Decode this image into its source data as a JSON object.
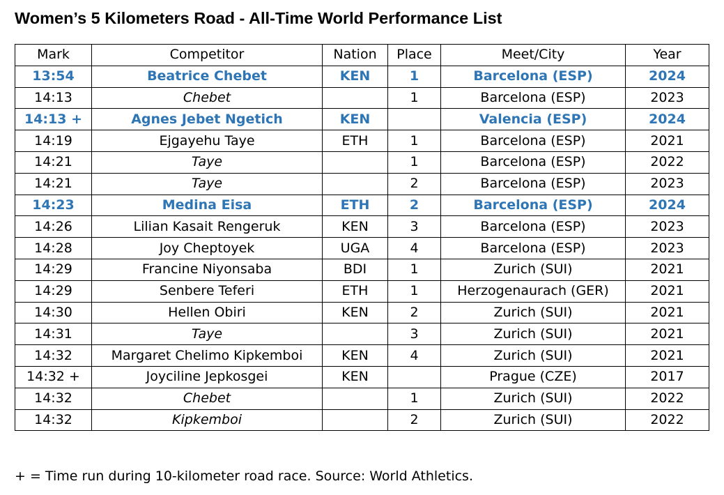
{
  "title": "Women’s 5 Kilometers Road - All-Time World Performance List",
  "colors": {
    "highlight": "#2e75b6",
    "text": "#000000",
    "border": "#000000"
  },
  "table": {
    "headers": [
      "Mark",
      "Competitor",
      "Nation",
      "Place",
      "Meet/City",
      "Year"
    ],
    "rows": [
      {
        "mark": "13:54",
        "competitor": "Beatrice Chebet",
        "nation": "KEN",
        "place": "1",
        "meet": "Barcelona (ESP)",
        "year": "2024",
        "highlight": true,
        "italic_name": false
      },
      {
        "mark": "14:13",
        "competitor": "Chebet",
        "nation": "",
        "place": "1",
        "meet": "Barcelona (ESP)",
        "year": "2023",
        "highlight": false,
        "italic_name": true
      },
      {
        "mark": "14:13 +",
        "competitor": "Agnes Jebet Ngetich",
        "nation": "KEN",
        "place": "",
        "meet": "Valencia (ESP)",
        "year": "2024",
        "highlight": true,
        "italic_name": false
      },
      {
        "mark": "14:19",
        "competitor": "Ejgayehu Taye",
        "nation": "ETH",
        "place": "1",
        "meet": "Barcelona (ESP)",
        "year": "2021",
        "highlight": false,
        "italic_name": false
      },
      {
        "mark": "14:21",
        "competitor": "Taye",
        "nation": "",
        "place": "1",
        "meet": "Barcelona (ESP)",
        "year": "2022",
        "highlight": false,
        "italic_name": true
      },
      {
        "mark": "14:21",
        "competitor": "Taye",
        "nation": "",
        "place": "2",
        "meet": "Barcelona (ESP)",
        "year": "2023",
        "highlight": false,
        "italic_name": true
      },
      {
        "mark": "14:23",
        "competitor": "Medina Eisa",
        "nation": "ETH",
        "place": "2",
        "meet": "Barcelona (ESP)",
        "year": "2024",
        "highlight": true,
        "italic_name": false
      },
      {
        "mark": "14:26",
        "competitor": "Lilian Kasait Rengeruk",
        "nation": "KEN",
        "place": "3",
        "meet": "Barcelona (ESP)",
        "year": "2023",
        "highlight": false,
        "italic_name": false
      },
      {
        "mark": "14:28",
        "competitor": "Joy Cheptoyek",
        "nation": "UGA",
        "place": "4",
        "meet": "Barcelona (ESP)",
        "year": "2023",
        "highlight": false,
        "italic_name": false
      },
      {
        "mark": "14:29",
        "competitor": "Francine Niyonsaba",
        "nation": "BDI",
        "place": "1",
        "meet": "Zurich (SUI)",
        "year": "2021",
        "highlight": false,
        "italic_name": false
      },
      {
        "mark": "14:29",
        "competitor": "Senbere Teferi",
        "nation": "ETH",
        "place": "1",
        "meet": "Herzogenaurach (GER)",
        "year": "2021",
        "highlight": false,
        "italic_name": false
      },
      {
        "mark": "14:30",
        "competitor": "Hellen Obiri",
        "nation": "KEN",
        "place": "2",
        "meet": "Zurich (SUI)",
        "year": "2021",
        "highlight": false,
        "italic_name": false
      },
      {
        "mark": "14:31",
        "competitor": "Taye",
        "nation": "",
        "place": "3",
        "meet": "Zurich (SUI)",
        "year": "2021",
        "highlight": false,
        "italic_name": true
      },
      {
        "mark": "14:32",
        "competitor": "Margaret Chelimo Kipkemboi",
        "nation": "KEN",
        "place": "4",
        "meet": "Zurich (SUI)",
        "year": "2021",
        "highlight": false,
        "italic_name": false
      },
      {
        "mark": "14:32 +",
        "competitor": "Joyciline Jepkosgei",
        "nation": "KEN",
        "place": "",
        "meet": "Prague (CZE)",
        "year": "2017",
        "highlight": false,
        "italic_name": false
      },
      {
        "mark": "14:32",
        "competitor": "Chebet",
        "nation": "",
        "place": "1",
        "meet": "Zurich (SUI)",
        "year": "2022",
        "highlight": false,
        "italic_name": true
      },
      {
        "mark": "14:32",
        "competitor": "Kipkemboi",
        "nation": "",
        "place": "2",
        "meet": "Zurich (SUI)",
        "year": "2022",
        "highlight": false,
        "italic_name": true
      }
    ]
  },
  "footnote": "+ = Time run during 10-kilometer road race. Source: World Athletics."
}
